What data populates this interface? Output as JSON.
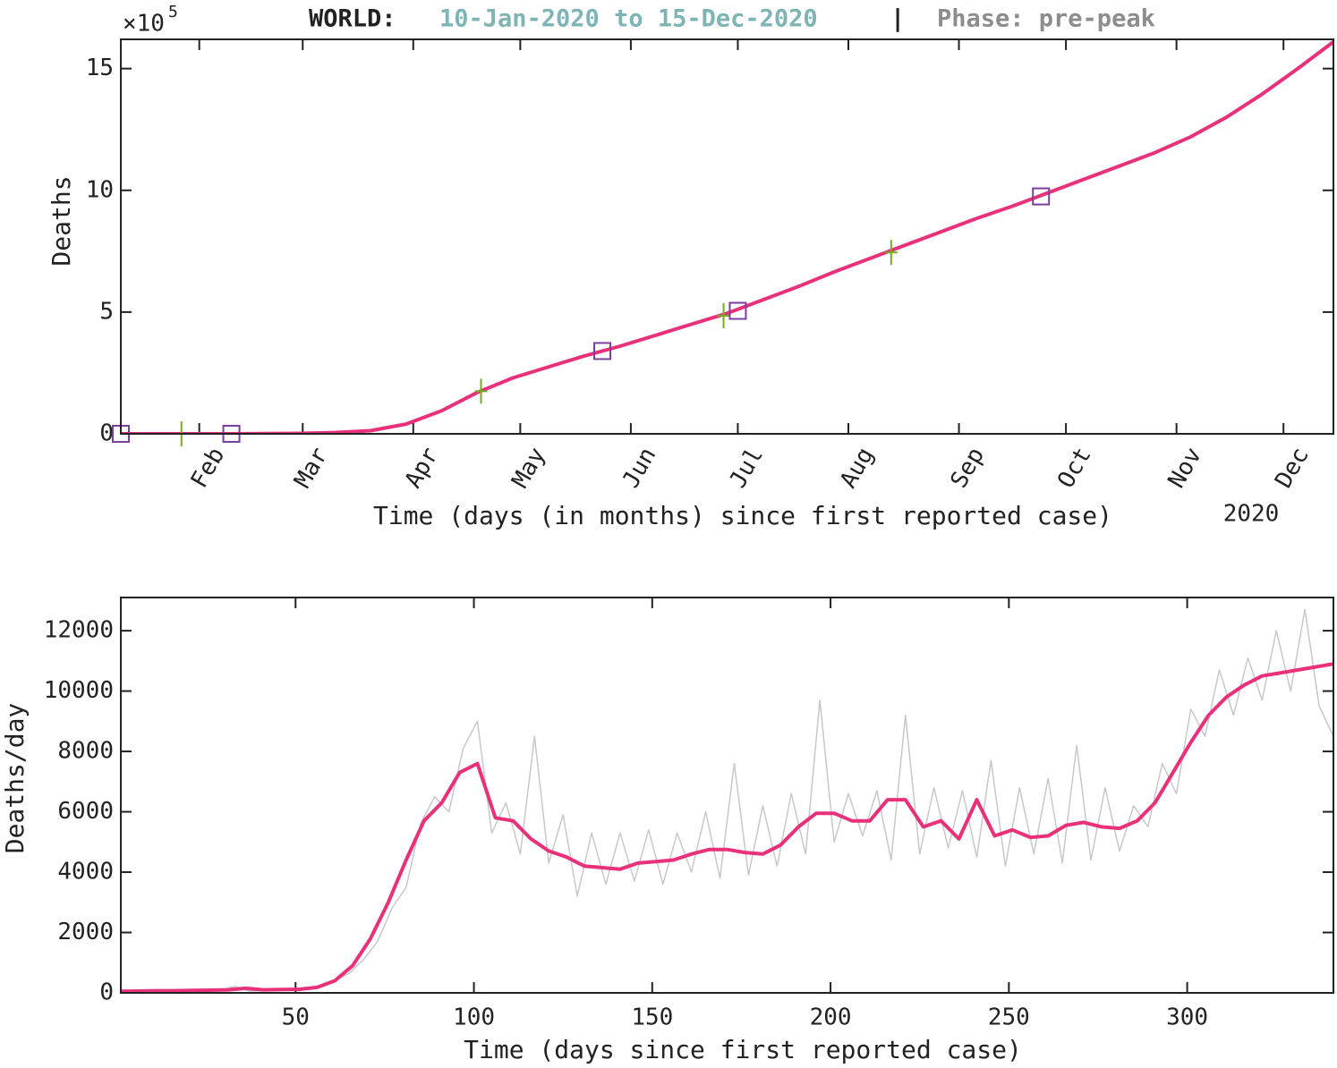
{
  "header": {
    "label": "WORLD:",
    "range": "10-Jan-2020 to 15-Dec-2020",
    "separator": "|",
    "phase": "Phase: pre-peak"
  },
  "chart_data": [
    {
      "type": "line",
      "y_scale_label": "×10",
      "y_scale_exponent": "5",
      "xlabel": "Time (days (in months) since first reported case)",
      "ylabel": "Deaths",
      "xtick_year": "2020",
      "xlim": [
        0,
        340
      ],
      "ylim": [
        0,
        16.2
      ],
      "xticks": [
        {
          "value": 22,
          "label": "Feb"
        },
        {
          "value": 51,
          "label": "Mar"
        },
        {
          "value": 82,
          "label": "Apr"
        },
        {
          "value": 112,
          "label": "May"
        },
        {
          "value": 143,
          "label": "Jun"
        },
        {
          "value": 173,
          "label": "Jul"
        },
        {
          "value": 204,
          "label": "Aug"
        },
        {
          "value": 235,
          "label": "Sep"
        },
        {
          "value": 265,
          "label": "Oct"
        },
        {
          "value": 296,
          "label": "Nov"
        },
        {
          "value": 326,
          "label": "Dec"
        }
      ],
      "yticks": [
        0,
        5,
        10,
        15
      ],
      "series": [
        {
          "color": "#e8317a",
          "line_width": 4,
          "x": [
            0,
            10,
            20,
            30,
            40,
            50,
            60,
            70,
            80,
            90,
            100,
            110,
            120,
            130,
            140,
            150,
            160,
            170,
            180,
            190,
            200,
            210,
            220,
            230,
            240,
            250,
            260,
            270,
            280,
            290,
            300,
            310,
            320,
            330,
            340
          ],
          "values": [
            0,
            0,
            0,
            0,
            0.01,
            0.02,
            0.05,
            0.13,
            0.4,
            0.95,
            1.7,
            2.3,
            2.75,
            3.2,
            3.6,
            4.05,
            4.5,
            4.95,
            5.5,
            6.05,
            6.65,
            7.2,
            7.75,
            8.3,
            8.85,
            9.35,
            9.9,
            10.45,
            11.0,
            11.55,
            12.2,
            13.0,
            13.95,
            15.0,
            16.1
          ]
        },
        {
          "color": "#77aa22",
          "marker": "plus",
          "x": [
            17,
            101,
            169,
            216
          ],
          "values": [
            0,
            1.75,
            4.85,
            7.45
          ]
        },
        {
          "color": "#7b3f9e",
          "marker": "square",
          "x": [
            0,
            31,
            135,
            173,
            258
          ],
          "values": [
            0,
            0,
            3.4,
            5.05,
            9.75
          ]
        }
      ]
    },
    {
      "type": "line",
      "xlabel": "Time (days since first reported case)",
      "ylabel": "Deaths/day",
      "xlim": [
        1,
        341
      ],
      "ylim": [
        0,
        13100
      ],
      "xticks": [
        50,
        100,
        150,
        200,
        250,
        300
      ],
      "yticks": [
        0,
        2000,
        4000,
        6000,
        8000,
        10000,
        12000
      ],
      "series": [
        {
          "color": "#c8c8c8",
          "line_width": 1.5,
          "x": [
            1,
            5,
            9,
            13,
            17,
            21,
            25,
            29,
            33,
            37,
            41,
            45,
            49,
            53,
            57,
            61,
            65,
            69,
            73,
            77,
            81,
            85,
            89,
            93,
            97,
            101,
            105,
            109,
            113,
            117,
            121,
            125,
            129,
            133,
            137,
            141,
            145,
            149,
            153,
            157,
            161,
            165,
            169,
            173,
            177,
            181,
            185,
            189,
            193,
            197,
            201,
            205,
            209,
            213,
            217,
            221,
            225,
            229,
            233,
            237,
            241,
            245,
            249,
            253,
            257,
            261,
            265,
            269,
            273,
            277,
            281,
            285,
            289,
            293,
            297,
            301,
            305,
            309,
            313,
            317,
            321,
            325,
            329,
            333,
            337,
            341
          ],
          "values": [
            0,
            10,
            30,
            20,
            50,
            90,
            50,
            100,
            220,
            60,
            70,
            100,
            150,
            120,
            250,
            400,
            650,
            1100,
            1700,
            2800,
            3500,
            5600,
            6500,
            6000,
            8100,
            9000,
            5300,
            6300,
            4600,
            8500,
            4300,
            5900,
            3200,
            5300,
            3600,
            5300,
            3700,
            5400,
            3600,
            5300,
            4000,
            6000,
            3800,
            7600,
            3900,
            6200,
            4200,
            6600,
            4600,
            9700,
            5000,
            6600,
            5200,
            6700,
            4400,
            9200,
            4600,
            6800,
            4800,
            6700,
            4500,
            7700,
            4200,
            6800,
            4600,
            7100,
            4300,
            8200,
            4400,
            6800,
            4700,
            6200,
            5500,
            7600,
            6600,
            9400,
            8500,
            10700,
            9200,
            11100,
            9700,
            12000,
            10000,
            12700,
            9500,
            8500
          ]
        },
        {
          "color": "#e8317a",
          "line_width": 4,
          "x": [
            1,
            6,
            11,
            16,
            21,
            26,
            31,
            36,
            41,
            46,
            51,
            56,
            61,
            66,
            71,
            76,
            81,
            86,
            91,
            96,
            101,
            106,
            111,
            116,
            121,
            126,
            131,
            136,
            141,
            146,
            151,
            156,
            161,
            166,
            171,
            176,
            181,
            186,
            191,
            196,
            201,
            206,
            211,
            216,
            221,
            226,
            231,
            236,
            241,
            246,
            251,
            256,
            261,
            266,
            271,
            276,
            281,
            286,
            291,
            296,
            301,
            306,
            311,
            316,
            321,
            326,
            331,
            336,
            341
          ],
          "values": [
            50,
            60,
            70,
            70,
            80,
            90,
            100,
            150,
            100,
            110,
            120,
            180,
            400,
            900,
            1800,
            3000,
            4400,
            5700,
            6300,
            7300,
            7600,
            5800,
            5700,
            5100,
            4700,
            4500,
            4200,
            4150,
            4100,
            4300,
            4350,
            4400,
            4600,
            4750,
            4750,
            4650,
            4600,
            4900,
            5500,
            5950,
            5950,
            5700,
            5700,
            6400,
            6400,
            5500,
            5700,
            5100,
            6400,
            5200,
            5400,
            5150,
            5200,
            5550,
            5650,
            5500,
            5450,
            5700,
            6300,
            7300,
            8300,
            9200,
            9800,
            10200,
            10500,
            10600,
            10700,
            10800,
            10900
          ]
        }
      ]
    }
  ]
}
